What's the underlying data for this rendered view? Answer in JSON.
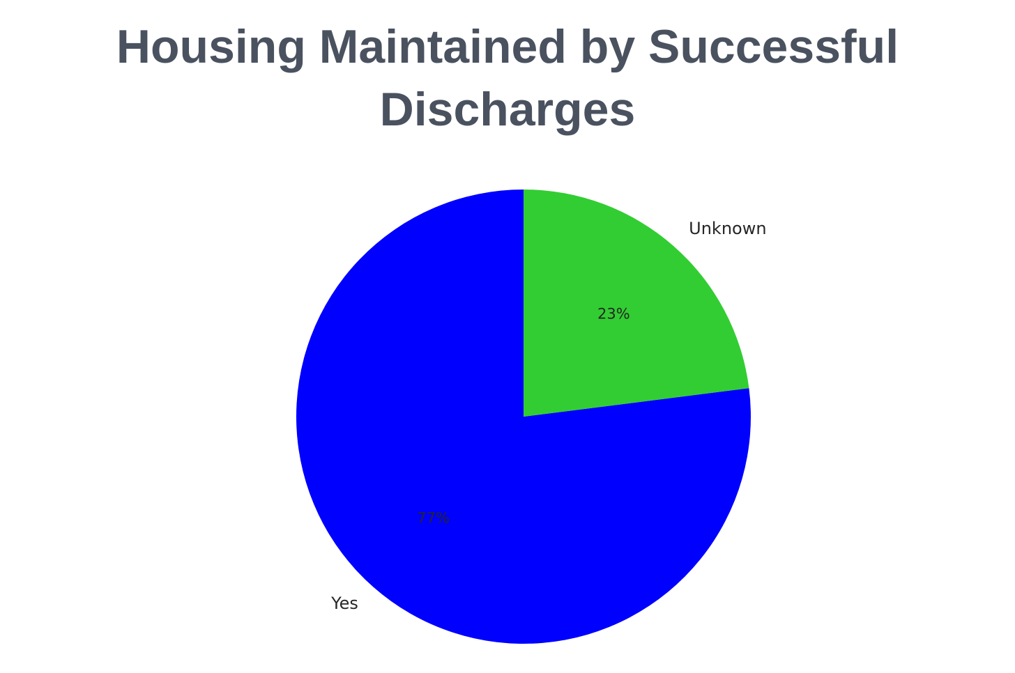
{
  "chart_data": {
    "type": "pie",
    "title": "Housing Maintained by Successful Discharges",
    "categories": [
      "Yes",
      "Unknown"
    ],
    "values": [
      77,
      23
    ],
    "value_labels": [
      "77%",
      "23%"
    ],
    "colors": [
      "#0000ff",
      "#32cd32"
    ]
  }
}
